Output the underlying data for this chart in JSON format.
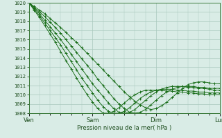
{
  "xlabel": "Pression niveau de la mer( hPa )",
  "ylim": [
    1008,
    1020
  ],
  "yticks": [
    1008,
    1009,
    1010,
    1011,
    1012,
    1013,
    1014,
    1015,
    1016,
    1017,
    1018,
    1019,
    1020
  ],
  "xtick_labels": [
    "Ven",
    "Sam",
    "Dim",
    "Lun"
  ],
  "xtick_positions": [
    0,
    48,
    96,
    144
  ],
  "x_total": 144,
  "background_color": "#d9ece6",
  "grid_color": "#a8c8bc",
  "line_color": "#1a6e1a",
  "lines": [
    [
      1020.0,
      1019.6,
      1019.2,
      1018.8,
      1018.3,
      1017.8,
      1017.3,
      1016.8,
      1016.2,
      1015.7,
      1015.1,
      1014.5,
      1013.9,
      1013.3,
      1012.7,
      1012.1,
      1011.5,
      1010.9,
      1010.3,
      1009.8,
      1009.3,
      1008.9,
      1008.6,
      1008.4,
      1008.5,
      1008.8,
      1009.2,
      1009.7,
      1010.2,
      1010.7,
      1011.1,
      1011.3,
      1011.4,
      1011.4,
      1011.3,
      1011.2,
      1011.2
    ],
    [
      1020.0,
      1019.5,
      1019.0,
      1018.5,
      1017.9,
      1017.3,
      1016.7,
      1016.0,
      1015.3,
      1014.6,
      1013.9,
      1013.2,
      1012.5,
      1011.7,
      1011.0,
      1010.3,
      1009.6,
      1009.0,
      1008.5,
      1008.1,
      1008.0,
      1008.1,
      1008.4,
      1008.9,
      1009.4,
      1009.9,
      1010.3,
      1010.6,
      1010.8,
      1010.9,
      1010.9,
      1010.9,
      1010.8,
      1010.8,
      1010.7,
      1010.7,
      1010.7
    ],
    [
      1020.0,
      1019.4,
      1018.8,
      1018.1,
      1017.4,
      1016.7,
      1016.0,
      1015.2,
      1014.4,
      1013.6,
      1012.8,
      1012.0,
      1011.2,
      1010.5,
      1009.8,
      1009.1,
      1008.5,
      1008.1,
      1008.0,
      1008.1,
      1008.4,
      1008.9,
      1009.4,
      1009.9,
      1010.3,
      1010.6,
      1010.8,
      1010.9,
      1010.9,
      1010.9,
      1010.8,
      1010.8,
      1010.7,
      1010.7,
      1010.6,
      1010.5,
      1010.5
    ],
    [
      1020.0,
      1019.3,
      1018.6,
      1017.8,
      1017.0,
      1016.2,
      1015.4,
      1014.5,
      1013.6,
      1012.7,
      1011.8,
      1011.0,
      1010.2,
      1009.4,
      1008.7,
      1008.2,
      1008.0,
      1008.0,
      1008.2,
      1008.6,
      1009.1,
      1009.6,
      1010.0,
      1010.3,
      1010.5,
      1010.6,
      1010.6,
      1010.6,
      1010.5,
      1010.5,
      1010.4,
      1010.4,
      1010.3,
      1010.3,
      1010.2,
      1010.2,
      1010.2
    ],
    [
      1020.0,
      1019.2,
      1018.4,
      1017.5,
      1016.6,
      1015.7,
      1014.7,
      1013.7,
      1012.8,
      1011.8,
      1010.9,
      1010.0,
      1009.2,
      1008.5,
      1008.0,
      1008.0,
      1008.2,
      1008.6,
      1009.1,
      1009.6,
      1010.0,
      1010.3,
      1010.5,
      1010.5,
      1010.5,
      1010.5,
      1010.4,
      1010.4,
      1010.3,
      1010.3,
      1010.2,
      1010.2,
      1010.1,
      1010.1,
      1010.0,
      1010.0,
      1010.0
    ]
  ]
}
